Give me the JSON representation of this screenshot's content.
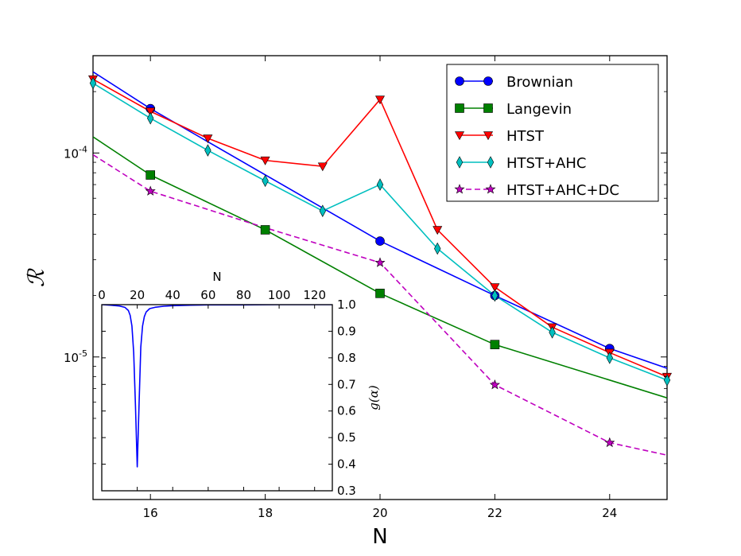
{
  "chart_data": [
    {
      "type": "line",
      "yscale": "log",
      "xlabel": "N",
      "ylabel": "ℛ",
      "xlim": [
        15,
        25
      ],
      "ylim": [
        2e-06,
        0.0003
      ],
      "x_ticks": [
        16,
        18,
        20,
        22,
        24
      ],
      "y_ticks": [
        {
          "value": 0.0001,
          "base": "10",
          "exp": "-4"
        },
        {
          "value": 1e-05,
          "base": "10",
          "exp": "-5"
        }
      ],
      "legend_position": "top-right",
      "series": [
        {
          "name": "Brownian",
          "color": "#0000ff",
          "marker": "circle",
          "dash": "solid",
          "x": [
            15,
            16,
            20,
            22,
            24,
            25
          ],
          "y": [
            0.00025,
            0.000165,
            3.7e-05,
            2e-05,
            1.1e-05,
            8.8e-06
          ],
          "markers_at": [
            16,
            20,
            22,
            24
          ]
        },
        {
          "name": "Langevin",
          "color": "#008000",
          "marker": "square",
          "dash": "solid",
          "x": [
            15,
            16,
            18,
            20,
            22,
            25
          ],
          "y": [
            0.00012,
            7.8e-05,
            4.2e-05,
            2.05e-05,
            1.15e-05,
            6.3e-06
          ],
          "markers_at": [
            16,
            18,
            20,
            22
          ]
        },
        {
          "name": "HTST",
          "color": "#ff0000",
          "marker": "triangle-down",
          "dash": "solid",
          "x": [
            15,
            16,
            17,
            18,
            19,
            20,
            21,
            22,
            23,
            24,
            25
          ],
          "y": [
            0.00023,
            0.00016,
            0.000118,
            9.2e-05,
            8.6e-05,
            0.000183,
            4.2e-05,
            2.2e-05,
            1.4e-05,
            1.05e-05,
            8e-06
          ],
          "markers_at": [
            15,
            16,
            17,
            18,
            19,
            20,
            21,
            22,
            23,
            24,
            25
          ]
        },
        {
          "name": "HTST+AHC",
          "color": "#00bfbf",
          "marker": "thin-diamond",
          "dash": "solid",
          "x": [
            15,
            16,
            17,
            18,
            19,
            20,
            21,
            22,
            23,
            24,
            25
          ],
          "y": [
            0.00022,
            0.000148,
            0.000103,
            7.3e-05,
            5.2e-05,
            7e-05,
            3.4e-05,
            2e-05,
            1.32e-05,
            9.9e-06,
            7.7e-06
          ],
          "markers_at": [
            15,
            16,
            17,
            18,
            19,
            20,
            21,
            22,
            23,
            24,
            25
          ]
        },
        {
          "name": "HTST+AHC+DC",
          "color": "#bf00bf",
          "marker": "star",
          "dash": "dashed",
          "x": [
            15,
            16,
            18,
            20,
            22,
            24,
            25
          ],
          "y": [
            9.8e-05,
            6.5e-05,
            4.3e-05,
            2.9e-05,
            7.3e-06,
            3.8e-06,
            3.3e-06
          ],
          "markers_at": [
            16,
            20,
            22,
            24
          ]
        }
      ]
    },
    {
      "type": "line",
      "xlabel": "N",
      "ylabel": "g(α)",
      "xlim": [
        0,
        130
      ],
      "ylim": [
        0.3,
        1.0
      ],
      "x_ticks": [
        0,
        20,
        40,
        60,
        80,
        100,
        120
      ],
      "y_ticks": [
        0.3,
        0.4,
        0.5,
        0.6,
        0.7,
        0.8,
        0.9,
        1.0
      ],
      "series": [
        {
          "name": "g",
          "color": "#0000ff",
          "x": [
            0,
            5,
            10,
            13,
            15,
            16,
            17,
            18,
            19,
            20,
            21,
            22,
            23,
            24,
            25,
            27,
            30,
            35,
            40,
            50,
            60,
            80,
            100,
            130
          ],
          "y": [
            1.0,
            0.998,
            0.995,
            0.99,
            0.978,
            0.96,
            0.92,
            0.82,
            0.62,
            0.39,
            0.62,
            0.84,
            0.92,
            0.955,
            0.972,
            0.985,
            0.99,
            0.994,
            0.996,
            0.998,
            0.999,
            0.999,
            1.0,
            1.0
          ]
        }
      ]
    }
  ]
}
